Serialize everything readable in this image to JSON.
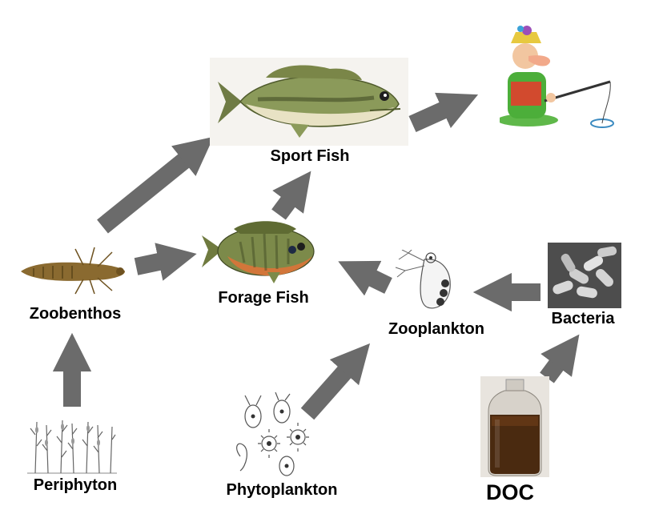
{
  "nodes": {
    "sport_fish": "Sport Fish",
    "forage_fish": "Forage Fish",
    "zoobenthos": "Zoobenthos",
    "zooplankton": "Zooplankton",
    "bacteria": "Bacteria",
    "periphyton": "Periphyton",
    "phytoplankton": "Phytoplankton",
    "doc": "DOC"
  },
  "colors": {
    "arrow": "#6b6b6b",
    "bass_body": "#8b9a5a",
    "sunfish_body": "#7c8a4a",
    "doc_liquid": "#4a2a10"
  }
}
